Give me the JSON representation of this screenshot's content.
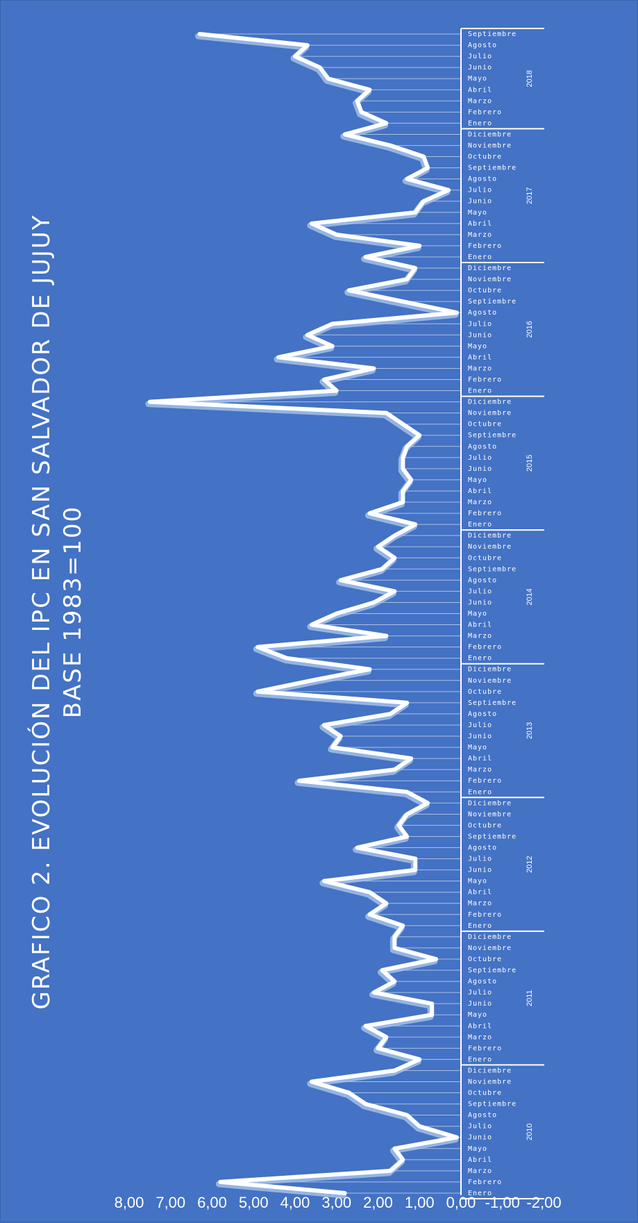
{
  "chart_data": {
    "type": "line",
    "title": "GRAFICO 2. EVOLUCIÓN DEL IPC EN SAN SALVADOR DE JUJUY",
    "subtitle": "BASE 1983=100",
    "xlabel": "",
    "ylabel": "",
    "ylim": [
      -2,
      8
    ],
    "yticks": [
      "8,00",
      "7,00",
      "6,00",
      "5,00",
      "4,00",
      "3,00",
      "2,00",
      "1,00",
      "0,00",
      "-1,00",
      "-2,00"
    ],
    "month_labels": [
      "Enero",
      "Febrero",
      "Marzo",
      "Abril",
      "Mayo",
      "Junio",
      "Julio",
      "Agosto",
      "Septiembre",
      "Octubre",
      "Noviembre",
      "Diciembre"
    ],
    "years": [
      "2010",
      "2011",
      "2012",
      "2013",
      "2014",
      "2015",
      "2016",
      "2017",
      "2018"
    ],
    "grid": false,
    "legend": "none",
    "series": [
      {
        "color": "#ffffff",
        "values": [
          2.8,
          5.8,
          1.7,
          1.4,
          1.6,
          0.1,
          1.0,
          1.3,
          2.3,
          2.7,
          3.6,
          1.6,
          1.0,
          2.0,
          1.8,
          2.3,
          0.7,
          0.7,
          2.1,
          1.6,
          1.9,
          0.6,
          1.6,
          1.6,
          1.4,
          2.2,
          1.8,
          2.2,
          3.3,
          1.1,
          1.1,
          2.5,
          1.3,
          1.5,
          1.3,
          0.8,
          1.3,
          3.9,
          1.6,
          1.2,
          3.1,
          2.9,
          3.3,
          1.7,
          1.3,
          4.9,
          3.6,
          2.2,
          4.2,
          4.9,
          1.8,
          3.6,
          3.0,
          2.1,
          1.6,
          2.9,
          1.9,
          1.6,
          2.0,
          1.6,
          1.1,
          2.2,
          1.4,
          1.4,
          1.2,
          1.4,
          1.4,
          1.3,
          1.0,
          1.4,
          1.8,
          7.5,
          3.0,
          3.3,
          2.1,
          4.4,
          3.1,
          3.7,
          3.1,
          0.1,
          1.4,
          2.7,
          1.3,
          1.1,
          2.3,
          1.0,
          3.0,
          3.6,
          1.1,
          0.9,
          0.3,
          1.3,
          0.8,
          0.9,
          1.7,
          2.8,
          1.8,
          2.4,
          2.5,
          2.2,
          3.2,
          3.4,
          4.0,
          3.7,
          6.3
        ]
      }
    ]
  }
}
